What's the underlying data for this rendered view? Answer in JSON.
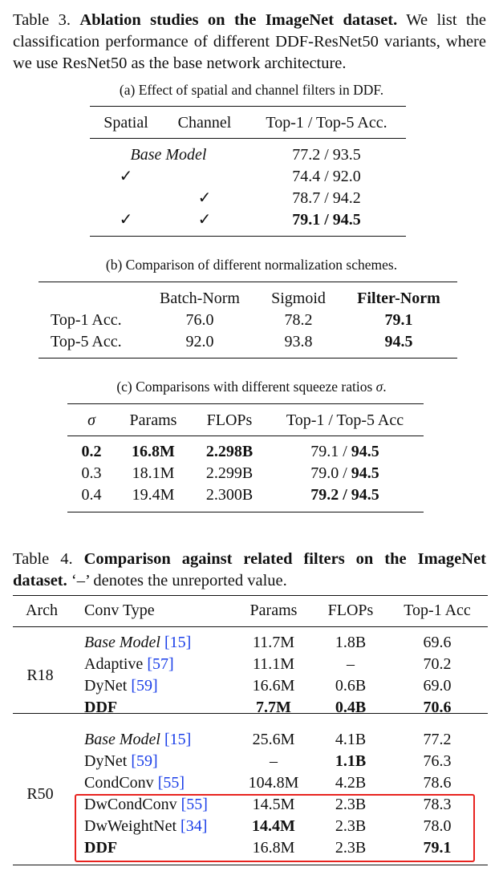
{
  "table3": {
    "caption": [
      {
        "text": "Table 3. "
      },
      {
        "text": "Ablation studies on the ImageNet dataset.",
        "style": "bold"
      },
      {
        "text": " We list the classification performance of different DDF-ResNet50 variants, where we use ResNet50 as the base network architecture."
      }
    ],
    "a": {
      "caption": "(a) Effect of spatial and channel filters in DDF.",
      "header": {
        "spatial": "Spatial",
        "channel": "Channel",
        "acc": "Top-1 / Top-5 Acc."
      },
      "rows": [
        {
          "setting": [
            {
              "text": "Base Model",
              "style": "italic"
            }
          ],
          "acc": "77.2 / 93.5"
        },
        {
          "spatial": "✓",
          "acc": "74.4 / 92.0"
        },
        {
          "channel": "✓",
          "acc": "78.7 / 94.2"
        },
        {
          "spatial": "✓",
          "channel": "✓",
          "acc": [
            {
              "text": "79.1 / 94.5",
              "style": "bold"
            }
          ]
        }
      ]
    },
    "b": {
      "caption": "(b) Comparison of different normalization schemes.",
      "header": [
        "Batch-Norm",
        "Sigmoid",
        [
          {
            "text": "Filter-Norm",
            "style": "bold"
          }
        ]
      ],
      "rows": [
        {
          "label": "Top-1 Acc.",
          "values": [
            "76.0",
            "78.2",
            [
              {
                "text": "79.1",
                "style": "bold"
              }
            ]
          ]
        },
        {
          "label": "Top-5 Acc.",
          "values": [
            "92.0",
            "93.8",
            [
              {
                "text": "94.5",
                "style": "bold"
              }
            ]
          ]
        }
      ]
    },
    "c": {
      "caption": [
        {
          "text": "(c) Comparisons with different squeeze ratios "
        },
        {
          "text": "σ",
          "style": "italic"
        },
        {
          "text": "."
        }
      ],
      "header": [
        [
          {
            "text": "σ",
            "style": "italic"
          }
        ],
        "Params",
        "FLOPs",
        "Top-1 / Top-5 Acc"
      ],
      "rows": [
        [
          [
            {
              "text": "0.2",
              "style": "bold"
            }
          ],
          [
            {
              "text": "16.8M",
              "style": "bold"
            }
          ],
          [
            {
              "text": "2.298B",
              "style": "bold"
            }
          ],
          [
            {
              "text": "79.1 / "
            },
            {
              "text": "94.5",
              "style": "bold"
            }
          ]
        ],
        [
          "0.3",
          "18.1M",
          "2.299B",
          [
            {
              "text": "79.0 / "
            },
            {
              "text": "94.5",
              "style": "bold"
            }
          ]
        ],
        [
          "0.4",
          "19.4M",
          "2.300B",
          [
            {
              "text": "79.2 / 94.5",
              "style": "bold"
            }
          ]
        ]
      ]
    }
  },
  "table4": {
    "caption": [
      {
        "text": "Table 4. "
      },
      {
        "text": "Comparison against related filters on the ImageNet dataset.",
        "style": "bold"
      },
      {
        "text": " ‘–’ denotes the unreported value."
      }
    ],
    "header": [
      "Arch",
      "Conv Type",
      "Params",
      "FLOPs",
      "Top-1 Acc"
    ],
    "groups": [
      {
        "arch": "R18",
        "rows": [
          [
            [
              {
                "text": "Base Model ",
                "style": "italic"
              },
              {
                "text": "[15]",
                "style": "cite"
              }
            ],
            "11.7M",
            "1.8B",
            "69.6"
          ],
          [
            [
              {
                "text": "Adaptive "
              },
              {
                "text": "[57]",
                "style": "cite"
              }
            ],
            "11.1M",
            "–",
            "70.2"
          ],
          [
            [
              {
                "text": "DyNet "
              },
              {
                "text": "[59]",
                "style": "cite"
              }
            ],
            "16.6M",
            "0.6B",
            "69.0"
          ],
          [
            [
              {
                "text": "DDF",
                "style": "bold"
              }
            ],
            [
              {
                "text": "7.7M",
                "style": "bold"
              }
            ],
            [
              {
                "text": "0.4B",
                "style": "bold"
              }
            ],
            [
              {
                "text": "70.6",
                "style": "bold"
              }
            ]
          ]
        ]
      },
      {
        "arch": "R50",
        "rows": [
          [
            [
              {
                "text": "Base Model ",
                "style": "italic"
              },
              {
                "text": "[15]",
                "style": "cite"
              }
            ],
            "25.6M",
            "4.1B",
            "77.2"
          ],
          [
            [
              {
                "text": "DyNet "
              },
              {
                "text": "[59]",
                "style": "cite"
              }
            ],
            "–",
            [
              {
                "text": "1.1B",
                "style": "bold"
              }
            ],
            "76.3"
          ],
          [
            [
              {
                "text": "CondConv "
              },
              {
                "text": "[55]",
                "style": "cite"
              }
            ],
            "104.8M",
            "4.2B",
            "78.6"
          ],
          [
            [
              {
                "text": "DwCondConv "
              },
              {
                "text": "[55]",
                "style": "cite"
              }
            ],
            "14.5M",
            "2.3B",
            "78.3"
          ],
          [
            [
              {
                "text": "DwWeightNet "
              },
              {
                "text": "[34]",
                "style": "cite"
              }
            ],
            [
              {
                "text": "14.4M",
                "style": "bold"
              }
            ],
            "2.3B",
            "78.0"
          ],
          [
            [
              {
                "text": "DDF",
                "style": "bold"
              }
            ],
            "16.8M",
            "2.3B",
            [
              {
                "text": "79.1",
                "style": "bold"
              }
            ]
          ]
        ]
      }
    ]
  }
}
